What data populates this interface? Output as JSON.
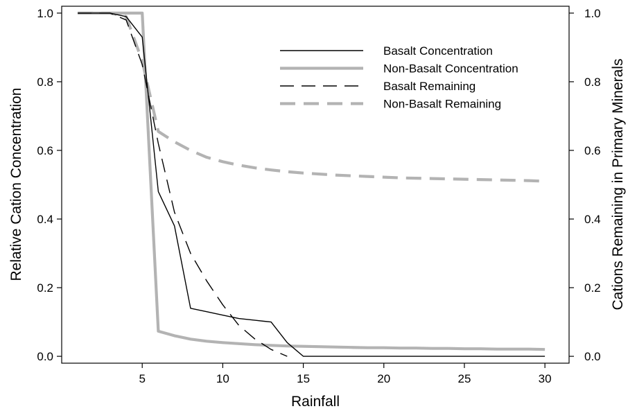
{
  "chart_data": {
    "type": "line",
    "title": "",
    "xlabel": "Rainfall",
    "ylabel": "Relative Cation Concentration",
    "y2label": "Cations Remaining in Primary Minerals",
    "xlim": [
      0,
      31.5
    ],
    "ylim": [
      -0.02,
      1.02
    ],
    "y2lim": [
      -0.02,
      1.02
    ],
    "x_ticks": [
      5,
      10,
      15,
      20,
      25,
      30
    ],
    "y_ticks": [
      0.0,
      0.2,
      0.4,
      0.6,
      0.8,
      1.0
    ],
    "y_tick_labels": [
      "0.0",
      "0.2",
      "0.4",
      "0.6",
      "0.8",
      "1.0"
    ],
    "y2_ticks": [
      0.0,
      0.2,
      0.4,
      0.6,
      0.8,
      1.0
    ],
    "y2_tick_labels": [
      "0.0",
      "0.2",
      "0.4",
      "0.6",
      "0.8",
      "1.0"
    ],
    "grid": false,
    "legend_position": "top-right",
    "series": [
      {
        "name": "Basalt Concentration",
        "axis": "left",
        "color": "#000000",
        "style": "solid",
        "x": [
          1,
          2,
          3,
          4,
          5,
          6,
          7,
          8,
          9,
          10,
          11,
          12,
          13,
          14,
          15,
          16,
          17,
          18,
          19,
          20,
          21,
          22,
          23,
          24,
          25,
          26,
          27,
          28,
          29,
          30
        ],
        "y": [
          1.0,
          1.0,
          1.0,
          0.99,
          0.93,
          0.48,
          0.38,
          0.14,
          0.13,
          0.12,
          0.11,
          0.105,
          0.1,
          0.04,
          0.0,
          0.0,
          0.0,
          0.0,
          0.0,
          0.0,
          0.0,
          0.0,
          0.0,
          0.0,
          0.0,
          0.0,
          0.0,
          0.0,
          0.0,
          0.0
        ]
      },
      {
        "name": "Non-Basalt Concentration",
        "axis": "left",
        "color": "#b3b3b3",
        "style": "solid-thick",
        "x": [
          1,
          2,
          3,
          4,
          5,
          6,
          7,
          8,
          9,
          10,
          11,
          12,
          13,
          14,
          15,
          16,
          17,
          18,
          19,
          20,
          21,
          22,
          23,
          24,
          25,
          26,
          27,
          28,
          29,
          30
        ],
        "y": [
          1.0,
          1.0,
          1.0,
          1.0,
          1.0,
          0.073,
          0.06,
          0.05,
          0.044,
          0.04,
          0.037,
          0.034,
          0.032,
          0.03,
          0.029,
          0.028,
          0.027,
          0.026,
          0.025,
          0.025,
          0.024,
          0.024,
          0.023,
          0.023,
          0.022,
          0.022,
          0.021,
          0.021,
          0.021,
          0.02
        ]
      },
      {
        "name": "Basalt Remaining",
        "axis": "right",
        "color": "#000000",
        "style": "dashed",
        "x": [
          1,
          2,
          3,
          4,
          5,
          6,
          7,
          8,
          9,
          10,
          11,
          12,
          13,
          14
        ],
        "y": [
          1.0,
          1.0,
          1.0,
          0.98,
          0.85,
          0.62,
          0.42,
          0.3,
          0.22,
          0.15,
          0.09,
          0.05,
          0.02,
          0.0
        ]
      },
      {
        "name": "Non-Basalt Remaining",
        "axis": "right",
        "color": "#b3b3b3",
        "style": "dashed-thick",
        "x": [
          1,
          2,
          3,
          4,
          5,
          6,
          7,
          8,
          9,
          10,
          11,
          12,
          13,
          14,
          15,
          16,
          17,
          18,
          19,
          20,
          21,
          22,
          23,
          24,
          25,
          26,
          27,
          28,
          29,
          30
        ],
        "y": [
          1.0,
          1.0,
          1.0,
          0.99,
          0.86,
          0.655,
          0.625,
          0.6,
          0.58,
          0.567,
          0.557,
          0.549,
          0.543,
          0.538,
          0.534,
          0.531,
          0.528,
          0.526,
          0.524,
          0.522,
          0.52,
          0.519,
          0.518,
          0.517,
          0.516,
          0.515,
          0.514,
          0.513,
          0.512,
          0.51
        ]
      }
    ]
  }
}
